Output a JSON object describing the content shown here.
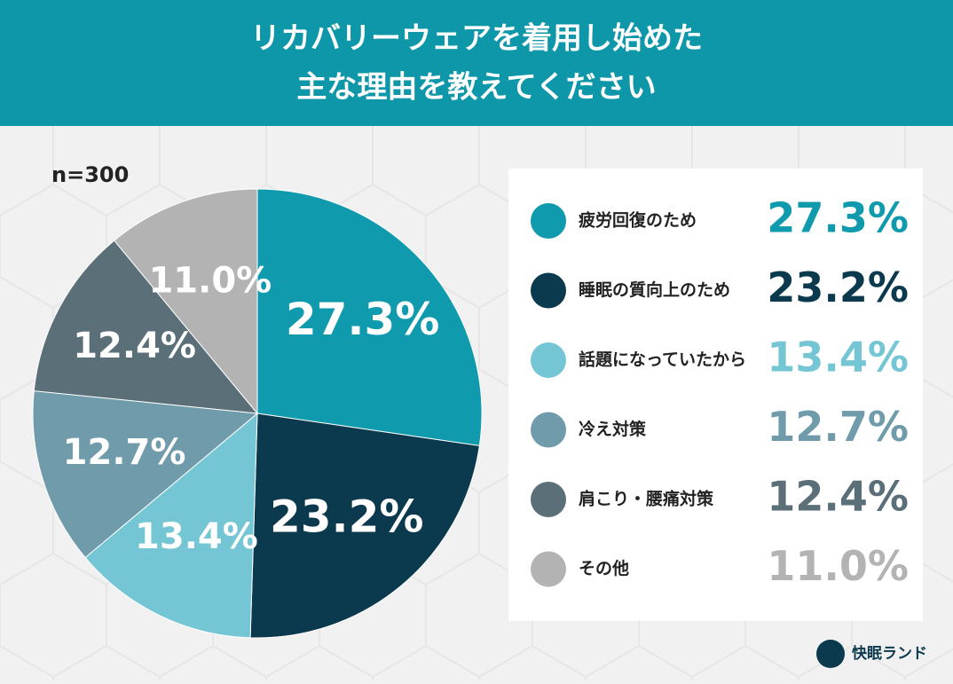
{
  "chart_data": {
    "type": "pie",
    "title": [
      "リカバリーウェアを着用し始めた",
      "主な理由を教えてください"
    ],
    "sample_size": "n=300",
    "brand": "快眠ランド",
    "categories": [
      "疲労回復のため",
      "睡眠の質向上のため",
      "話題になっていたから",
      "冷え対策",
      "肩こり・腰痛対策",
      "その他"
    ],
    "values": [
      27.3,
      23.2,
      13.4,
      12.7,
      12.4,
      11.0
    ],
    "value_labels": [
      "27.3%",
      "23.2%",
      "13.4%",
      "12.7%",
      "12.4%",
      "11.0%"
    ],
    "colors": [
      "#0f9aae",
      "#0b3a4f",
      "#75c6d4",
      "#6f9bab",
      "#5b6f79",
      "#b3b3b3"
    ]
  }
}
